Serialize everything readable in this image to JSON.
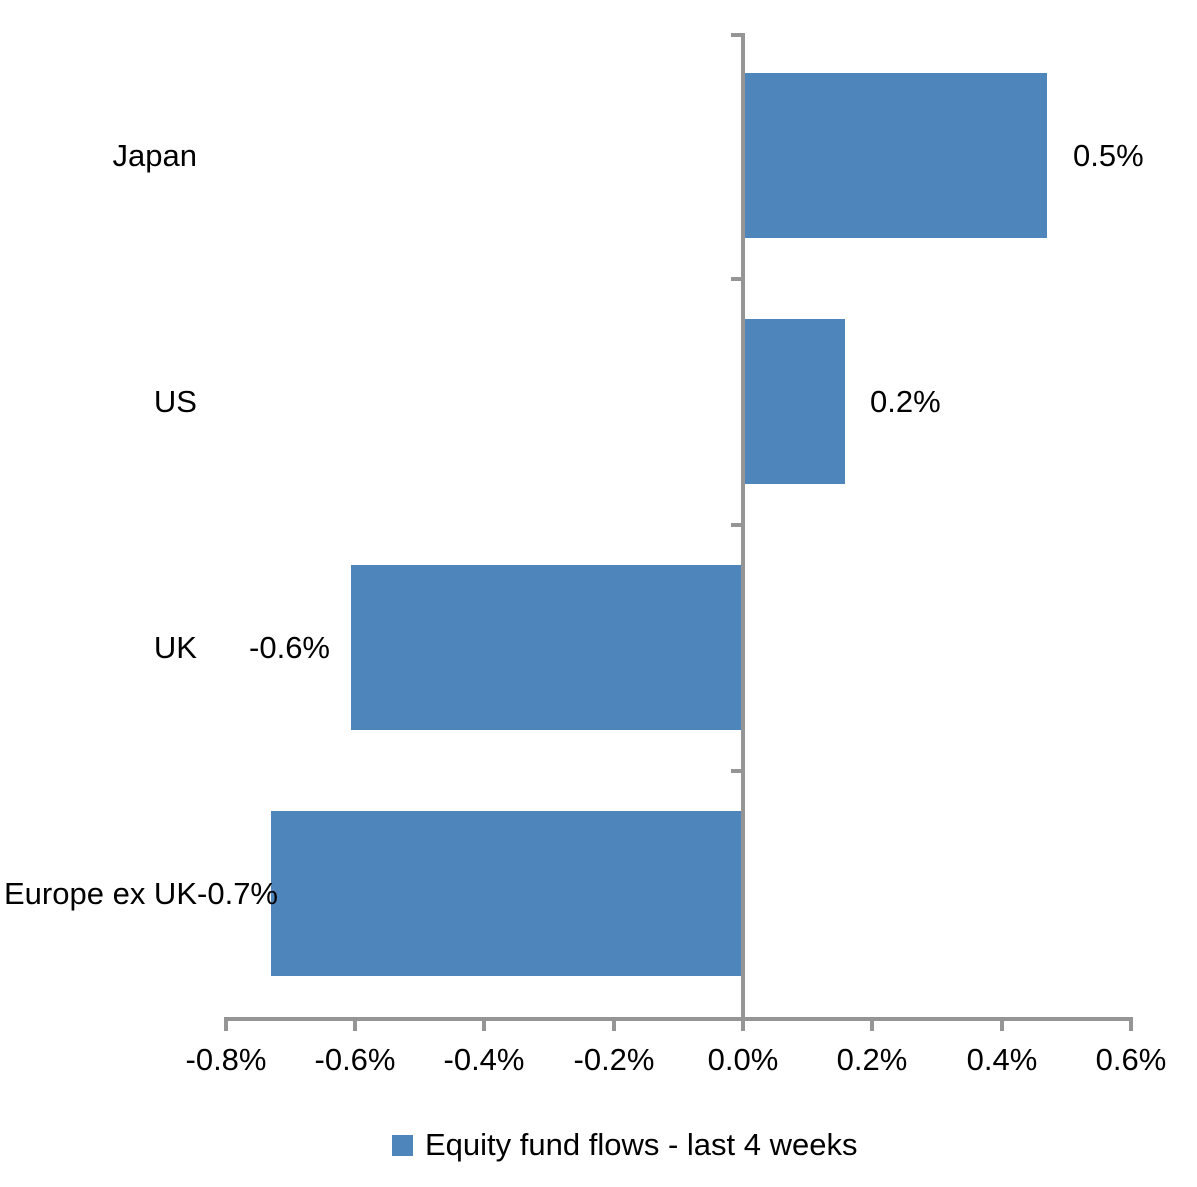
{
  "chart_data": {
    "type": "bar",
    "orientation": "horizontal",
    "title": "",
    "xlabel": "",
    "ylabel": "",
    "categories": [
      "Japan",
      "US",
      "UK",
      "Europe ex UK"
    ],
    "series": [
      {
        "name": "Equity fund flows - last 4 weeks",
        "values": [
          0.5,
          0.2,
          -0.6,
          -0.7
        ],
        "values_precise_pct": [
          0.467,
          0.155,
          -0.603,
          -0.727
        ],
        "data_labels": [
          "0.5%",
          "0.2%",
          "-0.6%",
          "-0.7%"
        ]
      }
    ],
    "x_axis": {
      "min": -0.8,
      "max": 0.6,
      "tick_step": 0.2,
      "unit": "%",
      "tick_labels": [
        "-0.8%",
        "-0.6%",
        "-0.4%",
        "-0.2%",
        "0.0%",
        "0.2%",
        "0.4%",
        "0.6%"
      ]
    },
    "legend": {
      "position": "bottom",
      "label": "Equity fund flows - last 4 weeks"
    },
    "grid": false,
    "colors": {
      "bar": "#4E86BC",
      "axis": "#959595",
      "text": "#000000",
      "background": "#FFFFFF"
    }
  }
}
